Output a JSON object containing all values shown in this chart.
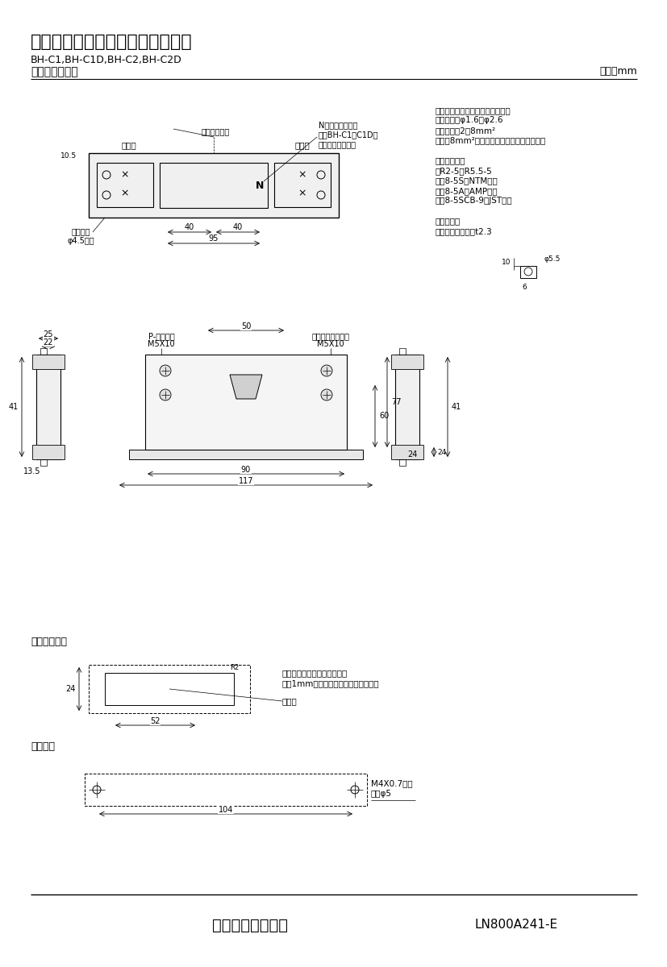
{
  "title_main": "三菱分電盤用ノーヒューズ遮断器",
  "title_sub1": "BH-C1,BH-C1D,BH-C2,BH-C2D",
  "title_sub2": "標準外形寸法図",
  "unit_label": "単位：mm",
  "company": "三菱電機株式会社",
  "doc_number": "LN800A241-E",
  "bg_color": "#ffffff",
  "line_color": "#000000",
  "notes_right": [
    "適合電線サイズ（負荷端子のみ）",
    "　単線　：φ1.6～φ2.6",
    "　より線：2～8mm²",
    "（注）8mm²電線は圧着端子をご使用下さい",
    "",
    "適合圧着端子",
    "　R2-5～R5.5-5",
    "　　8-5S（NTM社）",
    "　　8-5A（AMP社）",
    "　　8-5SCB-9（JST社）",
    "",
    "導帯加工図",
    "　最大導帯板厚　t2.3"
  ]
}
